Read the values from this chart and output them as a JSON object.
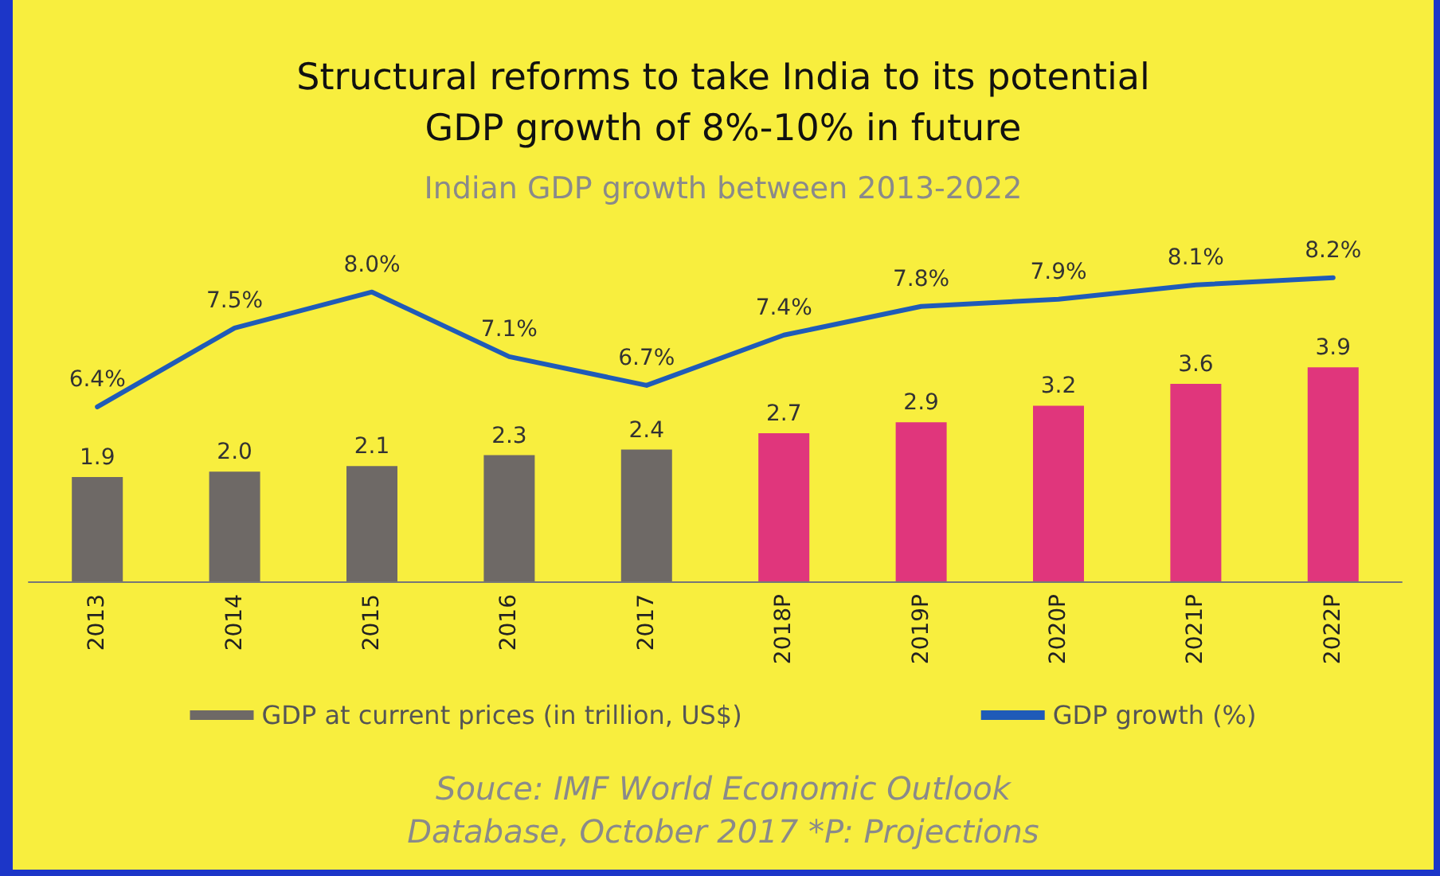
{
  "chart_data": {
    "type": "bar",
    "title": "Structural reforms to take India to its potential\nGDP growth of 8%-10% in future",
    "subtitle": "Indian GDP growth between 2013-2022",
    "categories": [
      "2013",
      "2014",
      "2015",
      "2016",
      "2017",
      "2018P",
      "2019P",
      "2020P",
      "2021P",
      "2022P"
    ],
    "series": [
      {
        "name": "GDP at current prices (in trillion, US$)",
        "color": "#6e6966",
        "colors": [
          "#6e6966",
          "#6e6966",
          "#6e6966",
          "#6e6966",
          "#6e6966",
          "#e0367c",
          "#e0367c",
          "#e0367c",
          "#e0367c",
          "#e0367c"
        ],
        "values": [
          1.9,
          2.0,
          2.1,
          2.3,
          2.4,
          2.7,
          2.9,
          3.2,
          3.6,
          3.9
        ],
        "value_labels": [
          "1.9",
          "2.0",
          "2.1",
          "2.3",
          "2.4",
          "2.7",
          "2.9",
          "3.2",
          "3.6",
          "3.9"
        ]
      },
      {
        "type": "line",
        "name": "GDP growth (%)",
        "color": "#1f5bb8",
        "axis": "y2",
        "values": [
          6.4,
          7.5,
          8.0,
          7.1,
          6.7,
          7.4,
          7.8,
          7.9,
          8.1,
          8.2
        ],
        "value_labels": [
          "6.4%",
          "7.5%",
          "8.0%",
          "7.1%",
          "6.7%",
          "7.4%",
          "7.8%",
          "7.9%",
          "8.1%",
          "8.2%"
        ]
      }
    ],
    "tick_labels": "x",
    "grid": false,
    "legend": "bottom",
    "marker": "none",
    "line_style": "solid",
    "annotations": [
      "Souce: IMF World Economic Outlook Database, October 2017 *P: Projections"
    ]
  }
}
